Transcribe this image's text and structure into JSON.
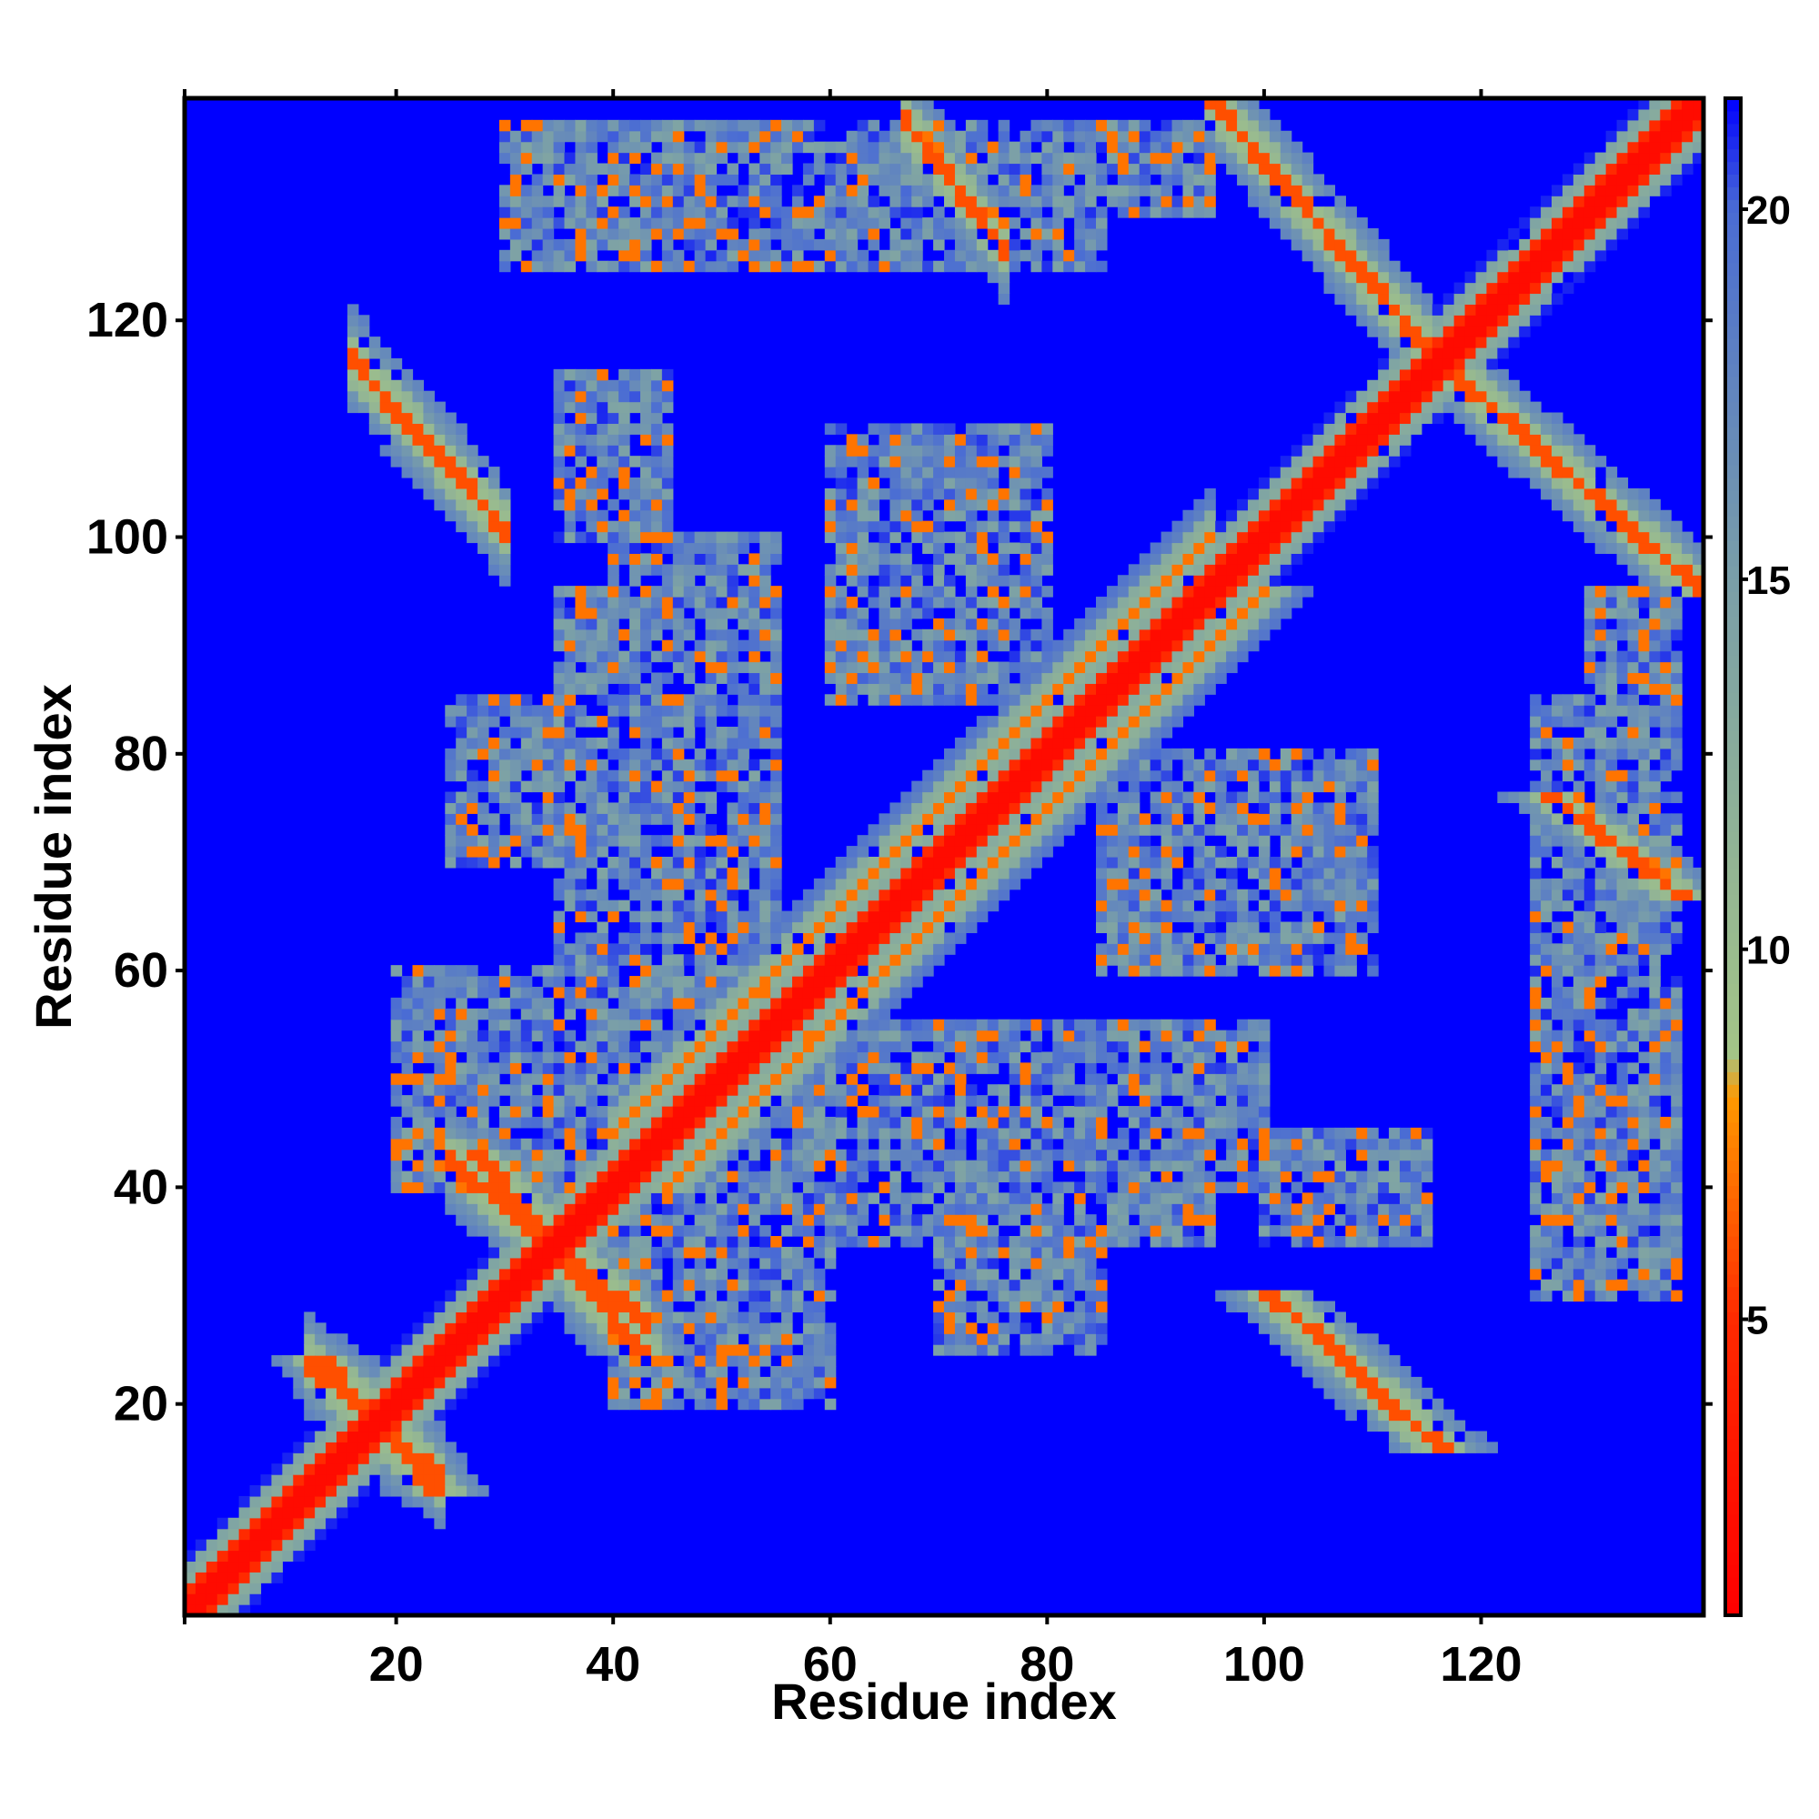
{
  "chart_data": {
    "type": "heatmap",
    "title": "",
    "xlabel": "Residue index",
    "ylabel": "Residue index",
    "n_residues": 140,
    "xlim": [
      1,
      140
    ],
    "ylim": [
      1,
      140
    ],
    "x_ticks": [
      20,
      40,
      60,
      80,
      100,
      120
    ],
    "y_ticks": [
      20,
      40,
      60,
      80,
      100,
      120
    ],
    "colorbar": {
      "range": [
        1,
        21.5
      ],
      "ticks": [
        5,
        10,
        15,
        20
      ],
      "stops": [
        {
          "value": 1,
          "color": "#ff0000"
        },
        {
          "value": 5,
          "color": "#ff2a00"
        },
        {
          "value": 8,
          "color": "#ff9900"
        },
        {
          "value": 8.6,
          "color": "#a3c487"
        },
        {
          "value": 15,
          "color": "#7a9fa8"
        },
        {
          "value": 20,
          "color": "#4a6cd4"
        },
        {
          "value": 21.5,
          "color": "#0000ff"
        }
      ],
      "background_color": "#0000ff"
    },
    "grid": false,
    "features": [
      {
        "kind": "diagonal",
        "from": 1,
        "to": 140,
        "core_width": 1.8,
        "halo_width": 5
      },
      {
        "kind": "parallel_band",
        "from": 40,
        "to": 95,
        "offset": 5
      },
      {
        "kind": "antiparallel",
        "i": [
          18,
          28
        ],
        "j": [
          103,
          114
        ]
      },
      {
        "kind": "antiparallel",
        "i": [
          68,
          75
        ],
        "j": [
          128,
          137
        ]
      },
      {
        "kind": "antiparallel",
        "i": [
          98,
          112
        ],
        "j": [
          121,
          137
        ]
      },
      {
        "kind": "antiparallel",
        "i": [
          28,
          40
        ],
        "j": [
          30,
          40
        ]
      },
      {
        "kind": "antiparallel",
        "i": [
          14,
          22
        ],
        "j": [
          15,
          22
        ]
      },
      {
        "kind": "cluster",
        "i": [
          35,
          55
        ],
        "j": [
          65,
          95
        ]
      },
      {
        "kind": "cluster",
        "i": [
          60,
          80
        ],
        "j": [
          85,
          110
        ]
      },
      {
        "kind": "cluster",
        "i": [
          35,
          45
        ],
        "j": [
          60,
          80
        ]
      },
      {
        "kind": "cluster",
        "i": [
          50,
          75
        ],
        "j": [
          35,
          55
        ]
      },
      {
        "kind": "cluster",
        "i": [
          85,
          100
        ],
        "j": [
          40,
          55
        ]
      },
      {
        "kind": "cluster",
        "i": [
          100,
          115
        ],
        "j": [
          35,
          45
        ]
      },
      {
        "kind": "cluster",
        "i": [
          125,
          138
        ],
        "j": [
          35,
          85
        ]
      },
      {
        "kind": "cluster",
        "i": [
          40,
          60
        ],
        "j": [
          20,
          40
        ]
      },
      {
        "kind": "cluster",
        "i": [
          70,
          85
        ],
        "j": [
          25,
          40
        ]
      },
      {
        "kind": "cluster",
        "i": [
          30,
          45
        ],
        "j": [
          125,
          138
        ]
      },
      {
        "kind": "cluster",
        "i": [
          48,
          66
        ],
        "j": [
          130,
          138
        ]
      },
      {
        "kind": "cluster",
        "i": [
          80,
          95
        ],
        "j": [
          130,
          138
        ]
      }
    ]
  }
}
